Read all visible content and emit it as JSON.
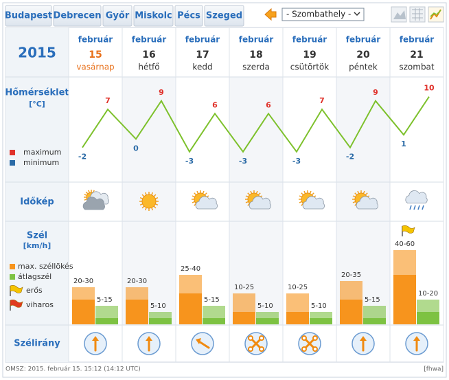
{
  "tabs": [
    "Budapest",
    "Debrecen",
    "Győr",
    "Miskolc",
    "Pécs",
    "Szeged"
  ],
  "city_select": "- Szombathely -",
  "year": 2015,
  "days": [
    {
      "month": "február",
      "day": 15,
      "weekday": "vasárnap"
    },
    {
      "month": "február",
      "day": 16,
      "weekday": "hétfő"
    },
    {
      "month": "február",
      "day": 17,
      "weekday": "kedd"
    },
    {
      "month": "február",
      "day": 18,
      "weekday": "szerda"
    },
    {
      "month": "február",
      "day": 19,
      "weekday": "csütörtök"
    },
    {
      "month": "február",
      "day": 20,
      "weekday": "péntek"
    },
    {
      "month": "február",
      "day": 21,
      "weekday": "szombat"
    }
  ],
  "temperature": {
    "type": "line",
    "title": "Hőmérséklet",
    "unit": "[°C]",
    "ylim": [
      -10,
      14
    ],
    "line_color": "#7dc12c",
    "series": [
      {
        "name": "maximum",
        "color": "#e0322b",
        "values": [
          7,
          9,
          6,
          6,
          7,
          9,
          10
        ]
      },
      {
        "name": "minimum",
        "color": "#2a6aa6",
        "values": [
          -2,
          0,
          -3,
          -3,
          -3,
          -2,
          1
        ]
      }
    ]
  },
  "sky": {
    "title": "Időkép"
  },
  "wind": {
    "type": "bar",
    "title": "Szél",
    "unit": "[km/h]",
    "ylim": [
      0,
      65
    ],
    "series": [
      {
        "name": "max. széllökés",
        "color": "#f7941d",
        "low": [
          20,
          20,
          25,
          10,
          10,
          20,
          40
        ],
        "high": [
          30,
          30,
          40,
          25,
          25,
          35,
          60
        ],
        "value_labels": [
          "20-30",
          "20-30",
          "25-40",
          "10-25",
          "10-25",
          "20-35",
          "40-60"
        ]
      },
      {
        "name": "átlagszél",
        "color": "#7dc242",
        "low": [
          5,
          5,
          5,
          5,
          5,
          5,
          10
        ],
        "high": [
          15,
          10,
          15,
          10,
          10,
          15,
          20
        ],
        "value_labels": [
          "5-15",
          "5-10",
          "5-15",
          "5-10",
          "5-10",
          "5-15",
          "10-20"
        ]
      }
    ],
    "flags": [
      {
        "name": "erős",
        "color": "#f5c400"
      },
      {
        "name": "viharos",
        "color": "#e03a1e"
      }
    ]
  },
  "wind_direction": {
    "title": "Szélirány"
  },
  "footer": {
    "source": "OMSZ: 2015. február 15. 15:12 (14:12 UTC)",
    "code": "[fhwa]"
  }
}
